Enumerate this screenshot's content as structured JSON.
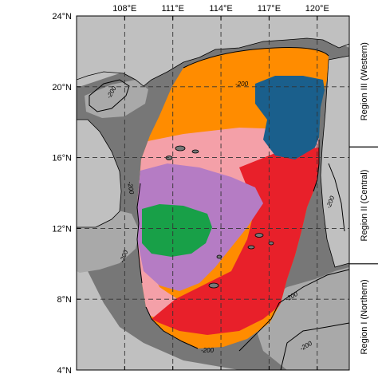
{
  "map": {
    "lon_labels": [
      "108°E",
      "111°E",
      "114°E",
      "117°E",
      "120°E"
    ],
    "lat_labels": [
      "24°N",
      "20°N",
      "16°N",
      "12°N",
      "8°N",
      "4°N"
    ],
    "lon_values": [
      108,
      111,
      114,
      117,
      120
    ],
    "lat_values": [
      24,
      20,
      16,
      12,
      8,
      4
    ],
    "lon_range": [
      105,
      122
    ],
    "lat_range": [
      4,
      24
    ],
    "contour_label": "-200",
    "regions": [
      {
        "label": "Region III (Western)",
        "lat_range": [
          16.6,
          24
        ]
      },
      {
        "label": "Region II (Central)",
        "lat_range": [
          10.0,
          16.6
        ]
      },
      {
        "label": "Region I (Northern)",
        "lat_range": [
          4,
          10.0
        ]
      }
    ],
    "colors": {
      "land": "#c0c0c0",
      "shelf": "#a9a9a9",
      "deep": "#777777",
      "orange": "#ff8c00",
      "pink": "#f4a0a8",
      "red": "#e8202a",
      "purple": "#b57cc4",
      "green": "#18a048",
      "blue": "#1a5f8c"
    },
    "grid": true
  }
}
